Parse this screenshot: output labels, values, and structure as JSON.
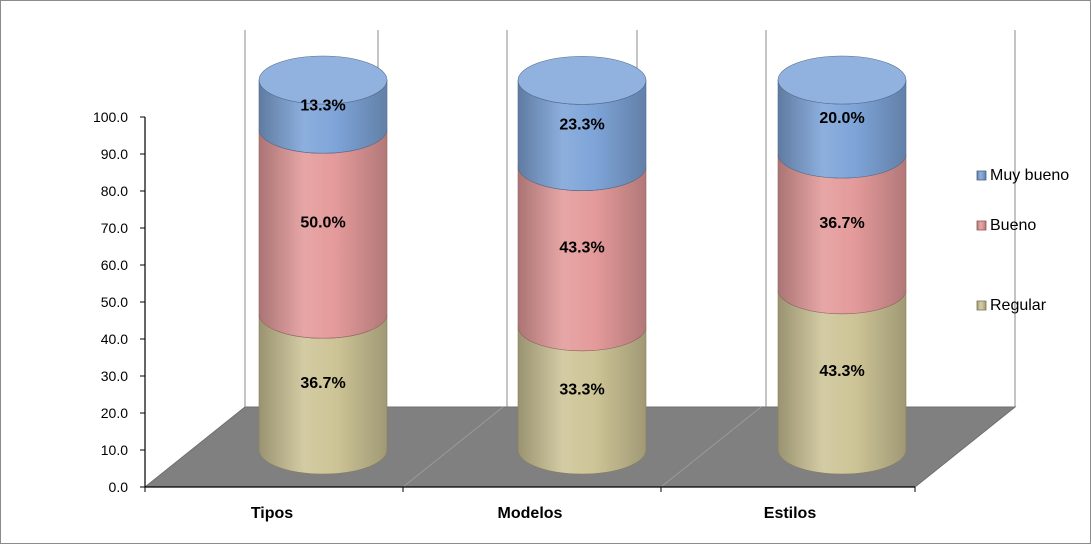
{
  "chart_data": {
    "type": "bar",
    "stacked": true,
    "three_d": true,
    "bar_shape": "cylinder",
    "categories": [
      "Tipos",
      "Modelos",
      "Estilos"
    ],
    "series": [
      {
        "name": "Regular",
        "values": [
          36.7,
          33.3,
          43.3
        ],
        "labels": [
          "36.7%",
          "33.3%",
          "43.3%"
        ],
        "color": "#cdc496"
      },
      {
        "name": "Bueno",
        "values": [
          50.0,
          43.3,
          36.7
        ],
        "labels": [
          "50.0%",
          "43.3%",
          "36.7%"
        ],
        "color": "#e49a9a"
      },
      {
        "name": "Muy bueno",
        "values": [
          13.3,
          23.3,
          20.0
        ],
        "labels": [
          "13.3%",
          "23.3%",
          "20.0%"
        ],
        "color": "#7ea4d8"
      }
    ],
    "legend_order": [
      "Muy bueno",
      "Bueno",
      "Regular"
    ],
    "y_ticks": [
      "0.0",
      "10.0",
      "20.0",
      "30.0",
      "40.0",
      "50.0",
      "60.0",
      "70.0",
      "80.0",
      "90.0",
      "100.0"
    ],
    "ylim": [
      0,
      100
    ],
    "legend_position": "right",
    "grid": "vertical",
    "floor_color": "#808080"
  }
}
